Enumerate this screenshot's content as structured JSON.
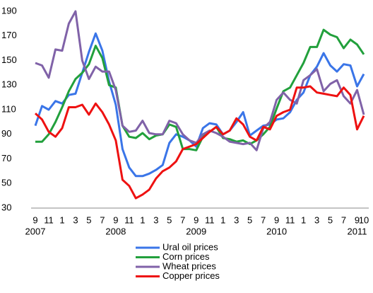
{
  "chart_data": {
    "type": "line",
    "categories": [
      "9",
      null,
      "11",
      null,
      "1",
      null,
      "3",
      null,
      "5",
      null,
      "7",
      null,
      "9",
      null,
      "11",
      null,
      "1",
      null,
      "3",
      null,
      "5",
      null,
      "7",
      null,
      "9",
      null,
      "11",
      null,
      "1",
      null,
      "3",
      null,
      "5",
      null,
      "7",
      null,
      "9",
      null,
      "11",
      null,
      "1",
      null,
      "3",
      null,
      "5",
      null,
      "7",
      null,
      "9",
      "10"
    ],
    "category_years": [
      "2007",
      null,
      null,
      null,
      null,
      null,
      null,
      null,
      null,
      null,
      null,
      null,
      "2008",
      null,
      null,
      null,
      null,
      null,
      null,
      null,
      null,
      null,
      null,
      null,
      "2009",
      null,
      null,
      null,
      null,
      null,
      null,
      null,
      null,
      null,
      null,
      null,
      "2010",
      null,
      null,
      null,
      null,
      null,
      null,
      null,
      null,
      null,
      null,
      null,
      "2011",
      null
    ],
    "series": [
      {
        "name": "Ural oil prices",
        "color": "#3a75e8",
        "values": [
          97,
          113,
          110,
          117,
          115,
          122,
          123,
          140,
          157,
          172,
          158,
          133,
          114,
          78,
          63,
          56,
          56,
          58,
          61,
          65,
          83,
          90,
          88,
          85,
          80,
          95,
          99,
          98,
          90,
          93,
          100,
          108,
          89,
          93,
          97,
          98,
          102,
          103,
          108,
          118,
          124,
          138,
          145,
          156,
          146,
          141,
          147,
          146,
          129,
          139
        ]
      },
      {
        "name": "Corn prices",
        "color": "#22a03c",
        "values": [
          84,
          84,
          90,
          100,
          112,
          125,
          135,
          140,
          147,
          162,
          152,
          130,
          128,
          97,
          88,
          87,
          91,
          86,
          89,
          90,
          98,
          96,
          78,
          78,
          77,
          88,
          92,
          96,
          87,
          86,
          84,
          85,
          82,
          85,
          90,
          96,
          111,
          125,
          128,
          138,
          148,
          161,
          161,
          175,
          171,
          169,
          160,
          167,
          163,
          155
        ]
      },
      {
        "name": "Wheat prices",
        "color": "#8062a8",
        "values": [
          148,
          146,
          136,
          159,
          158,
          180,
          190,
          150,
          135,
          145,
          141,
          141,
          126,
          97,
          92,
          93,
          101,
          91,
          90,
          90,
          101,
          99,
          90,
          85,
          83,
          90,
          93,
          91,
          88,
          84,
          83,
          82,
          83,
          77,
          95,
          100,
          118,
          124,
          118,
          115,
          134,
          138,
          143,
          125,
          131,
          134,
          121,
          115,
          126,
          106
        ]
      },
      {
        "name": "Copper prices",
        "color": "#ee1111",
        "values": [
          107,
          102,
          92,
          88,
          95,
          112,
          112,
          114,
          106,
          115,
          108,
          98,
          85,
          53,
          48,
          38,
          41,
          45,
          54,
          60,
          63,
          68,
          78,
          80,
          82,
          87,
          92,
          96,
          90,
          93,
          103,
          98,
          88,
          85,
          96,
          94,
          105,
          108,
          110,
          128,
          128,
          129,
          124,
          123,
          122,
          121,
          128,
          122,
          94,
          105
        ]
      }
    ],
    "ylim": [
      30,
      190
    ],
    "yticks": [
      30,
      50,
      70,
      90,
      110,
      130,
      150,
      170,
      190
    ]
  }
}
